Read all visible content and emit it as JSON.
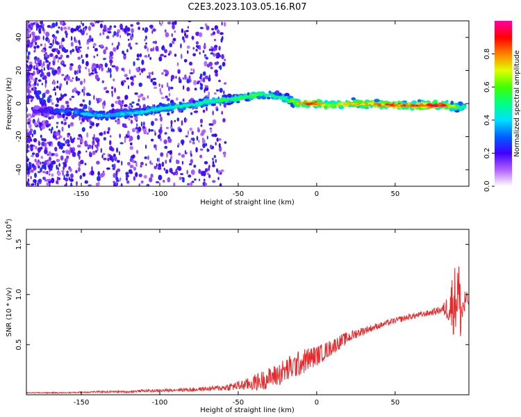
{
  "title": "C2E3.2023.103.05.16.R07",
  "chart_data": [
    {
      "type": "heatmap",
      "xlabel": "Height of straight line (km)",
      "ylabel": "Frequency (Hz)",
      "xlim": [
        -185,
        97
      ],
      "ylim": [
        -50,
        50
      ],
      "xticks": [
        -150,
        -100,
        -50,
        0,
        50
      ],
      "yticks": [
        -40,
        -20,
        0,
        20,
        40
      ],
      "colorbar": {
        "label": "Normalized spectral amplitude",
        "range": [
          0.0,
          1.0
        ],
        "ticks": [
          0.0,
          0.2,
          0.4,
          0.6,
          0.8
        ],
        "colormap": "rainbow (white-violet-blue-cyan-green-yellow-red-magenta)"
      },
      "ridge": {
        "x": [
          -180,
          -160,
          -150,
          -140,
          -130,
          -120,
          -110,
          -100,
          -90,
          -80,
          -70,
          -60,
          -50,
          -40,
          -35,
          -30,
          -25,
          -20,
          -15,
          -10,
          -5,
          0,
          5,
          10,
          20,
          30,
          50,
          70,
          80,
          90,
          95
        ],
        "freq": [
          -4,
          -5,
          -6,
          -7,
          -7,
          -6,
          -5,
          -3,
          -2,
          -1,
          1,
          2,
          3,
          5,
          6,
          5,
          4,
          3,
          1,
          0,
          0,
          0,
          -1,
          -1,
          0,
          0,
          -1,
          -1,
          -1,
          -2,
          -2
        ],
        "amplitude": [
          0.2,
          0.35,
          0.4,
          0.4,
          0.4,
          0.4,
          0.45,
          0.45,
          0.5,
          0.45,
          0.5,
          0.55,
          0.55,
          0.6,
          0.55,
          0.5,
          0.5,
          0.55,
          0.65,
          0.8,
          0.85,
          0.9,
          0.75,
          0.7,
          0.75,
          0.8,
          0.85,
          0.9,
          0.95,
          0.6,
          0.5
        ]
      },
      "grid": false
    },
    {
      "type": "line",
      "xlabel": "Height of straight line (km)",
      "ylabel": "SNR (10 * v/v)",
      "y_multiplier": "(x10^4)",
      "xlim": [
        -185,
        97
      ],
      "ylim": [
        0,
        1.65
      ],
      "xticks": [
        -150,
        -100,
        -50,
        0,
        50
      ],
      "yticks": [
        0.5,
        1.0,
        1.5
      ],
      "ytick_labels": [
        "0.5",
        "1.0",
        "1.5"
      ],
      "series": [
        {
          "color": "#e8292b",
          "x": [
            -185,
            -160,
            -140,
            -120,
            -110,
            -100,
            -90,
            -80,
            -70,
            -60,
            -50,
            -45,
            -40,
            -35,
            -30,
            -25,
            -20,
            -15,
            -10,
            -5,
            0,
            5,
            10,
            15,
            20,
            25,
            30,
            40,
            50,
            60,
            70,
            80,
            84,
            86,
            88,
            90,
            92,
            95,
            97
          ],
          "values": [
            0.02,
            0.02,
            0.03,
            0.03,
            0.04,
            0.04,
            0.05,
            0.05,
            0.06,
            0.07,
            0.09,
            0.1,
            0.12,
            0.14,
            0.17,
            0.2,
            0.24,
            0.28,
            0.32,
            0.36,
            0.39,
            0.43,
            0.48,
            0.53,
            0.57,
            0.61,
            0.64,
            0.69,
            0.74,
            0.78,
            0.81,
            0.85,
            0.87,
            0.9,
            0.95,
            1.05,
            0.8,
            0.95,
            0.93
          ],
          "noise": [
            0.005,
            0.006,
            0.008,
            0.01,
            0.012,
            0.015,
            0.015,
            0.02,
            0.02,
            0.03,
            0.05,
            0.06,
            0.08,
            0.1,
            0.1,
            0.12,
            0.13,
            0.13,
            0.13,
            0.12,
            0.1,
            0.09,
            0.08,
            0.07,
            0.06,
            0.05,
            0.04,
            0.03,
            0.03,
            0.03,
            0.03,
            0.04,
            0.15,
            0.3,
            0.35,
            0.4,
            0.3,
            0.1,
            0.05
          ]
        }
      ],
      "grid": false
    }
  ]
}
